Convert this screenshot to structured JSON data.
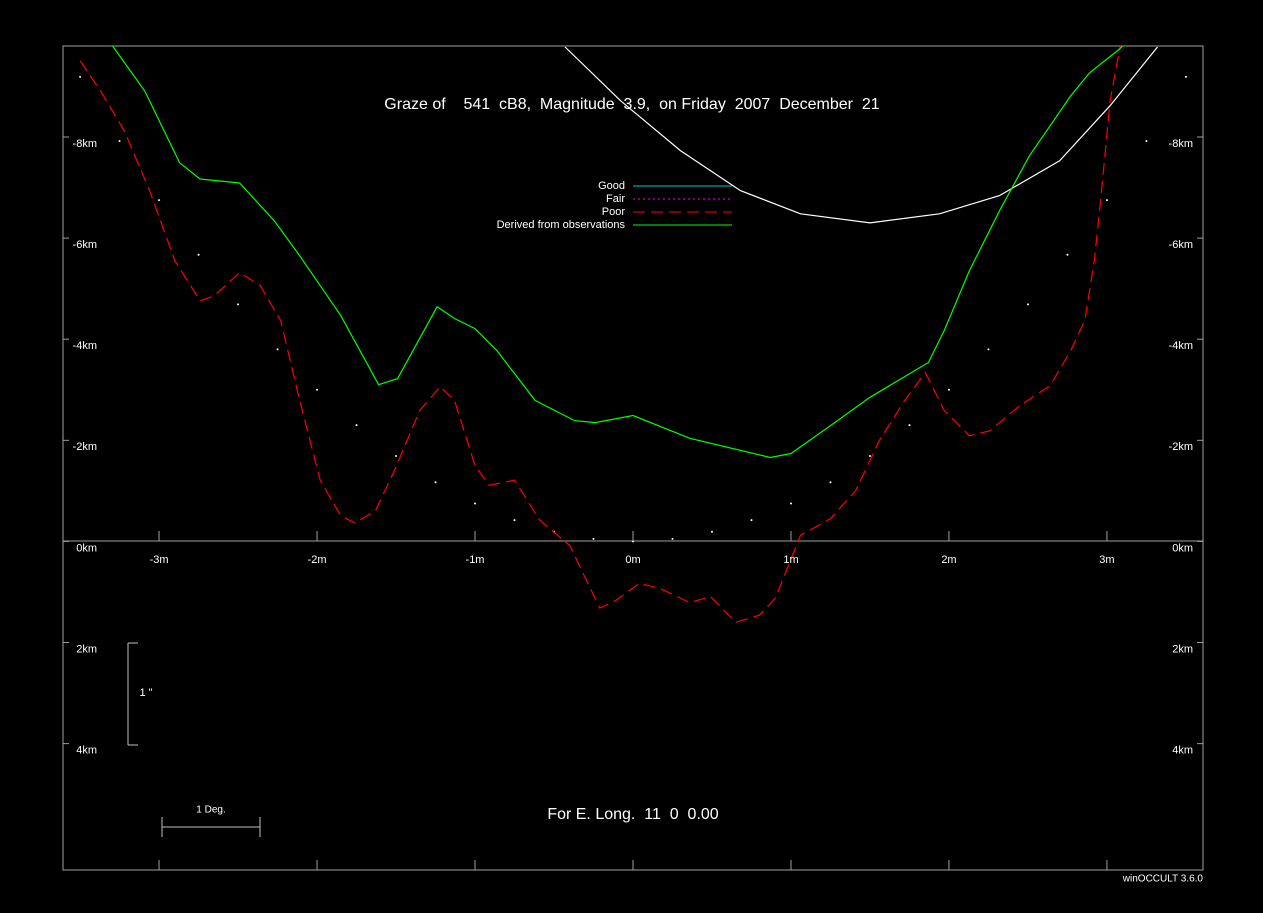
{
  "chart_data": {
    "type": "line",
    "title": "Graze of    541  cB8,  Magnitude  3.9,  on Friday  2007  December  21",
    "footer": "For E. Long.  11  0  0.00",
    "credit": "winOCCULT 3.6.0",
    "annotations": {
      "degree_scale": "1 Deg.",
      "arcsec_scale": "1 \""
    },
    "xlim": [
      -3.608,
      3.608
    ],
    "ylim": [
      -9.8,
      6.5
    ],
    "y_inverted": true,
    "xticks": [
      {
        "value": -3,
        "label": "-3m"
      },
      {
        "value": -2,
        "label": "-2m"
      },
      {
        "value": -1,
        "label": "-1m"
      },
      {
        "value": 0,
        "label": "0m"
      },
      {
        "value": 1,
        "label": "1m"
      },
      {
        "value": 2,
        "label": "2m"
      },
      {
        "value": 3,
        "label": "3m"
      }
    ],
    "yticks": [
      {
        "value": -8,
        "label": "-8km"
      },
      {
        "value": -6,
        "label": "-6km"
      },
      {
        "value": -4,
        "label": "-4km"
      },
      {
        "value": -2,
        "label": "-2km"
      },
      {
        "value": 0,
        "label": "0km"
      },
      {
        "value": 2,
        "label": "2km"
      },
      {
        "value": 4,
        "label": "4km"
      }
    ],
    "legend": [
      {
        "label": "Good",
        "color": "#00c8c8",
        "style": "solid"
      },
      {
        "label": "Fair",
        "color": "#ff00ff",
        "style": "dotted"
      },
      {
        "label": "Poor",
        "color": "#ff0000",
        "style": "dashed"
      },
      {
        "label": "Derived from observations",
        "color": "#00ff00",
        "style": "solid"
      }
    ],
    "series": [
      {
        "color": "#ffffff",
        "style": "solid",
        "x": [
          -3.59,
          -3.5,
          null,
          -0.43,
          -0.08,
          0.3,
          0.68,
          1.06,
          1.5,
          1.94,
          2.32,
          2.7,
          3.02,
          3.32
        ],
        "values": [
          -10.69,
          -9.8,
          null,
          -9.78,
          -8.72,
          -7.73,
          -6.94,
          -6.48,
          -6.3,
          -6.48,
          -6.84,
          -7.53,
          -8.62,
          -9.78
        ]
      },
      {
        "color": "#ffffff",
        "style": "dots",
        "x": [
          -3.5,
          -3.25,
          -3,
          -2.75,
          -2.5,
          -2.25,
          -2,
          -1.75,
          -1.5,
          -1.25,
          -1,
          -0.75,
          -0.5,
          -0.25,
          0,
          0.25,
          0.5,
          0.75,
          1,
          1.25,
          1.5,
          1.75,
          2,
          2.25,
          2.5,
          2.75,
          3,
          3.25,
          3.5
        ],
        "values": [
          -9.19,
          -7.92,
          -6.75,
          -5.67,
          -4.69,
          -3.8,
          -3.0,
          -2.3,
          -1.69,
          -1.17,
          -0.75,
          -0.42,
          -0.19,
          -0.05,
          0,
          -0.05,
          -0.19,
          -0.42,
          -0.75,
          -1.17,
          -1.69,
          -2.3,
          -3.0,
          -3.8,
          -4.69,
          -5.67,
          -6.75,
          -7.92,
          -9.19
        ]
      },
      {
        "color": "#ff0000",
        "style": "dashed",
        "x": [
          -3.5,
          -3.37,
          -3.22,
          -3.06,
          -2.9,
          -2.74,
          -2.65,
          -2.49,
          -2.36,
          -2.23,
          -2.11,
          -1.98,
          -1.85,
          -1.76,
          -1.63,
          -1.51,
          -1.35,
          -1.22,
          -1.13,
          -1.0,
          -0.91,
          -0.75,
          -0.59,
          -0.4,
          -0.21,
          -0.11,
          0.04,
          0.17,
          0.36,
          0.49,
          0.65,
          0.8,
          0.9,
          1.06,
          1.25,
          1.41,
          1.56,
          1.72,
          1.85,
          1.97,
          2.13,
          2.26,
          2.45,
          2.64,
          2.77,
          2.86,
          2.92,
          2.96,
          3.02,
          3.09
        ],
        "values": [
          -9.51,
          -8.91,
          -8.12,
          -6.94,
          -5.55,
          -4.76,
          -4.86,
          -5.32,
          -5.06,
          -4.37,
          -2.79,
          -1.21,
          -0.51,
          -0.36,
          -0.61,
          -1.4,
          -2.59,
          -3.06,
          -2.79,
          -1.5,
          -1.11,
          -1.21,
          -0.42,
          0.08,
          1.32,
          1.17,
          0.83,
          0.93,
          1.21,
          1.09,
          1.6,
          1.46,
          1.13,
          -0.12,
          -0.45,
          -1.01,
          -2.0,
          -2.79,
          -3.34,
          -2.59,
          -2.09,
          -2.19,
          -2.69,
          -3.08,
          -3.77,
          -4.37,
          -5.55,
          -6.74,
          -8.72,
          -9.9
        ]
      },
      {
        "color": "#00ff00",
        "style": "solid",
        "x": [
          -3.47,
          -3.34,
          -3.09,
          -2.87,
          -2.74,
          -2.49,
          -2.27,
          -2.11,
          -1.85,
          -1.61,
          -1.49,
          -1.24,
          -1.13,
          -1.0,
          -0.86,
          -0.62,
          -0.37,
          -0.24,
          0,
          0.36,
          0.87,
          1.0,
          1.25,
          1.5,
          1.87,
          1.97,
          2.13,
          2.32,
          2.51,
          2.77,
          2.89,
          3.08,
          3.37
        ],
        "values": [
          -10.69,
          -10.0,
          -8.91,
          -7.49,
          -7.17,
          -7.09,
          -6.34,
          -5.65,
          -4.47,
          -3.1,
          -3.22,
          -4.64,
          -4.41,
          -4.21,
          -3.77,
          -2.79,
          -2.39,
          -2.35,
          -2.49,
          -2.04,
          -1.66,
          -1.74,
          -2.29,
          -2.85,
          -3.54,
          -4.17,
          -5.36,
          -6.54,
          -7.63,
          -8.81,
          -9.27,
          -9.74,
          -10.69
        ]
      }
    ]
  }
}
